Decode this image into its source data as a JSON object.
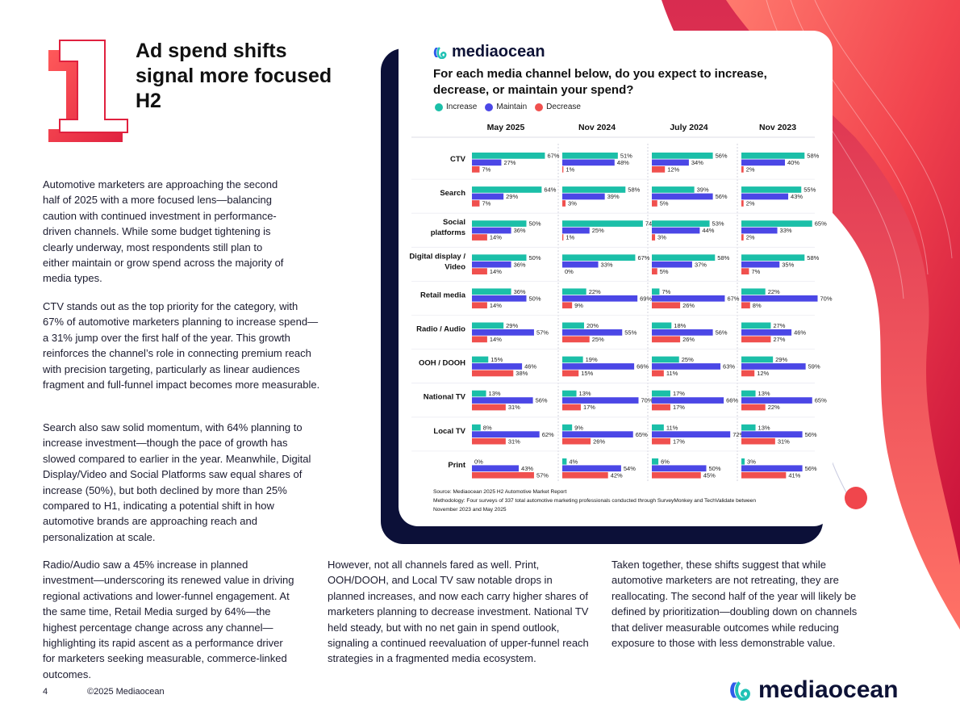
{
  "page": {
    "headline": "Ad spend shifts signal more focused H2",
    "section_number": "1",
    "paragraphs_left": [
      "Automotive marketers are approaching the second half of 2025 with a more focused lens—balancing caution with continued investment in performance-driven channels. While some budget tightening is clearly underway, most respondents still plan to either maintain or grow spend across the majority of media types.",
      "CTV stands out as the top priority for the category, with 67% of automotive marketers planning to increase spend—a 31% jump over the first half of the year. This growth reinforces the channel’s role in connecting premium reach with precision targeting, particularly as linear audiences fragment and full-funnel impact becomes more measurable.",
      "Search also saw solid momentum, with 64% planning to increase investment—though the pace of growth has slowed compared to earlier in the year. Meanwhile, Digital Display/Video and Social Platforms saw equal shares of increase (50%), but both declined by more than 25% compared to H1, indicating a potential shift in how automotive brands are approaching reach and personalization at scale.",
      "Radio/Audio saw a 45% increase in planned investment—underscoring its renewed value in driving regional activations and lower-funnel engagement. At the same time, Retail Media surged by 64%—the highest percentage change across any channel—highlighting its rapid ascent as a performance driver for marketers seeking measurable, commerce-linked outcomes."
    ],
    "paragraph_middle": "However, not all channels fared as well. Print, OOH/DOOH, and Local TV saw notable drops in planned increases, and now each carry higher shares of marketers planning to decrease investment. National TV held steady, but with no net gain in spend outlook, signaling a continued reevaluation of upper-funnel reach strategies in a fragmented media ecosystem.",
    "paragraph_right": "Taken together, these shifts suggest that while automotive marketers are not retreating, they are reallocating. The second half of the year will likely be defined by prioritization—doubling down on channels that deliver measurable outcomes while reducing exposure to those with less demonstrable value.",
    "footer_page": "4",
    "footer_copyright": "©2025 Mediaocean",
    "brand": "mediaocean"
  },
  "colors": {
    "increase": "#1bbfa8",
    "maintain": "#4b47e6",
    "decrease": "#f0504e",
    "navy": "#0c1038",
    "brand_red": "#e8233f"
  },
  "chart_card": {
    "brand": "mediaocean",
    "question": "For each media channel below, do you expect to increase, decrease, or maintain your spend?",
    "source": "Source: Mediaocean 2025 H2 Automotive Market Report",
    "methodology": "Methodology: Four surveys of 337 total automotive marketing professionals conducted through SurveyMonkey and TechValidate between November 2023 and May 2025"
  },
  "chart_data": {
    "type": "bar",
    "orientation": "horizontal",
    "legend": [
      "Increase",
      "Maintain",
      "Decrease"
    ],
    "legend_placement": "top-left",
    "periods": [
      "May 2025",
      "Nov 2024",
      "July 2024",
      "Nov 2023"
    ],
    "categories": [
      "CTV",
      "Search",
      "Social platforms",
      "Digital display / Video",
      "Retail media",
      "Radio / Audio",
      "OOH / DOOH",
      "National TV",
      "Local TV",
      "Print"
    ],
    "category_lines": [
      [
        "CTV"
      ],
      [
        "Search"
      ],
      [
        "Social",
        "platforms"
      ],
      [
        "Digital display /",
        "Video"
      ],
      [
        "Retail media"
      ],
      [
        "Radio / Audio"
      ],
      [
        "OOH / DOOH"
      ],
      [
        "National TV"
      ],
      [
        "Local TV"
      ],
      [
        "Print"
      ]
    ],
    "unit": "%",
    "xlim": [
      0,
      100
    ],
    "values": [
      [
        [
          67,
          27,
          7
        ],
        [
          51,
          48,
          1
        ],
        [
          56,
          34,
          12
        ],
        [
          58,
          40,
          2
        ]
      ],
      [
        [
          64,
          29,
          7
        ],
        [
          58,
          39,
          3
        ],
        [
          39,
          56,
          5
        ],
        [
          55,
          43,
          2
        ]
      ],
      [
        [
          50,
          36,
          14
        ],
        [
          74,
          25,
          1
        ],
        [
          53,
          44,
          3
        ],
        [
          65,
          33,
          2
        ]
      ],
      [
        [
          50,
          36,
          14
        ],
        [
          67,
          33,
          0
        ],
        [
          58,
          37,
          5
        ],
        [
          58,
          35,
          7
        ]
      ],
      [
        [
          36,
          50,
          14
        ],
        [
          22,
          69,
          9
        ],
        [
          7,
          67,
          26
        ],
        [
          22,
          70,
          8
        ]
      ],
      [
        [
          29,
          57,
          14
        ],
        [
          20,
          55,
          25
        ],
        [
          18,
          56,
          26
        ],
        [
          27,
          46,
          27
        ]
      ],
      [
        [
          15,
          46,
          38
        ],
        [
          19,
          66,
          15
        ],
        [
          25,
          63,
          11
        ],
        [
          29,
          59,
          12
        ]
      ],
      [
        [
          13,
          56,
          31
        ],
        [
          13,
          70,
          17
        ],
        [
          17,
          66,
          17
        ],
        [
          13,
          65,
          22
        ]
      ],
      [
        [
          8,
          62,
          31
        ],
        [
          9,
          65,
          26
        ],
        [
          11,
          72,
          17
        ],
        [
          13,
          56,
          31
        ]
      ],
      [
        [
          0,
          43,
          57
        ],
        [
          4,
          54,
          42
        ],
        [
          6,
          50,
          45
        ],
        [
          3,
          56,
          41
        ]
      ]
    ]
  }
}
